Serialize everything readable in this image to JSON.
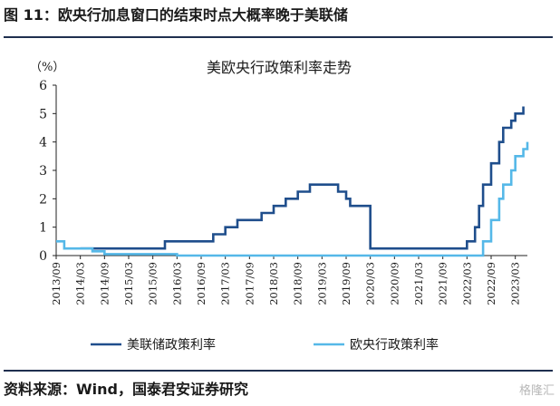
{
  "figure_title": "图 11：欧央行加息窗口的结束时点大概率晚于美联储",
  "source_text": "资料来源：Wind，国泰君安证券研究",
  "watermark_text": "格隆汇",
  "chart_data": {
    "type": "line",
    "title": "美欧央行政策利率走势",
    "y_unit_label": "（%）",
    "ylim": [
      0,
      6
    ],
    "yticks": [
      0,
      1,
      2,
      3,
      4,
      5,
      6
    ],
    "xlim": [
      "2013-09",
      "2023-06"
    ],
    "xticks": [
      "2013/09",
      "2014/03",
      "2014/09",
      "2015/03",
      "2015/09",
      "2016/03",
      "2016/09",
      "2017/03",
      "2017/09",
      "2018/03",
      "2018/09",
      "2019/03",
      "2019/09",
      "2020/03",
      "2020/09",
      "2021/03",
      "2021/09",
      "2022/03",
      "2022/09",
      "2023/03"
    ],
    "grid": false,
    "legend_position": "bottom",
    "series": [
      {
        "name": "美联储政策利率",
        "color": "#1f4e8c",
        "points": [
          [
            "2014-03",
            0.25
          ],
          [
            "2015-12",
            0.25
          ],
          [
            "2015-12",
            0.5
          ],
          [
            "2016-12",
            0.5
          ],
          [
            "2016-12",
            0.75
          ],
          [
            "2017-03",
            0.75
          ],
          [
            "2017-03",
            1.0
          ],
          [
            "2017-06",
            1.0
          ],
          [
            "2017-06",
            1.25
          ],
          [
            "2017-12",
            1.25
          ],
          [
            "2017-12",
            1.5
          ],
          [
            "2018-03",
            1.5
          ],
          [
            "2018-03",
            1.75
          ],
          [
            "2018-06",
            1.75
          ],
          [
            "2018-06",
            2.0
          ],
          [
            "2018-09",
            2.0
          ],
          [
            "2018-09",
            2.25
          ],
          [
            "2018-12",
            2.25
          ],
          [
            "2018-12",
            2.5
          ],
          [
            "2019-07",
            2.5
          ],
          [
            "2019-07",
            2.25
          ],
          [
            "2019-09",
            2.25
          ],
          [
            "2019-09",
            2.0
          ],
          [
            "2019-10",
            2.0
          ],
          [
            "2019-10",
            1.75
          ],
          [
            "2020-03",
            1.75
          ],
          [
            "2020-03",
            1.25
          ],
          [
            "2020-03",
            0.25
          ],
          [
            "2022-03",
            0.25
          ],
          [
            "2022-03",
            0.5
          ],
          [
            "2022-05",
            0.5
          ],
          [
            "2022-05",
            1.0
          ],
          [
            "2022-06",
            1.0
          ],
          [
            "2022-06",
            1.75
          ],
          [
            "2022-07",
            1.75
          ],
          [
            "2022-07",
            2.5
          ],
          [
            "2022-09",
            2.5
          ],
          [
            "2022-09",
            3.25
          ],
          [
            "2022-11",
            3.25
          ],
          [
            "2022-11",
            4.0
          ],
          [
            "2022-12",
            4.0
          ],
          [
            "2022-12",
            4.5
          ],
          [
            "2023-02",
            4.5
          ],
          [
            "2023-02",
            4.75
          ],
          [
            "2023-03",
            4.75
          ],
          [
            "2023-03",
            5.0
          ],
          [
            "2023-05",
            5.0
          ],
          [
            "2023-05",
            5.25
          ]
        ]
      },
      {
        "name": "欧央行政策利率",
        "color": "#55b8e8",
        "points": [
          [
            "2013-09",
            0.5
          ],
          [
            "2013-11",
            0.5
          ],
          [
            "2013-11",
            0.25
          ],
          [
            "2014-06",
            0.25
          ],
          [
            "2014-06",
            0.15
          ],
          [
            "2014-09",
            0.15
          ],
          [
            "2014-09",
            0.05
          ],
          [
            "2016-03",
            0.05
          ],
          [
            "2016-03",
            0.0
          ],
          [
            "2022-07",
            0.0
          ],
          [
            "2022-07",
            0.5
          ],
          [
            "2022-09",
            0.5
          ],
          [
            "2022-09",
            1.25
          ],
          [
            "2022-11",
            1.25
          ],
          [
            "2022-11",
            2.0
          ],
          [
            "2022-12",
            2.0
          ],
          [
            "2022-12",
            2.5
          ],
          [
            "2023-02",
            2.5
          ],
          [
            "2023-02",
            3.0
          ],
          [
            "2023-03",
            3.0
          ],
          [
            "2023-03",
            3.5
          ],
          [
            "2023-05",
            3.5
          ],
          [
            "2023-05",
            3.75
          ],
          [
            "2023-06",
            3.75
          ],
          [
            "2023-06",
            4.0
          ]
        ]
      }
    ]
  }
}
